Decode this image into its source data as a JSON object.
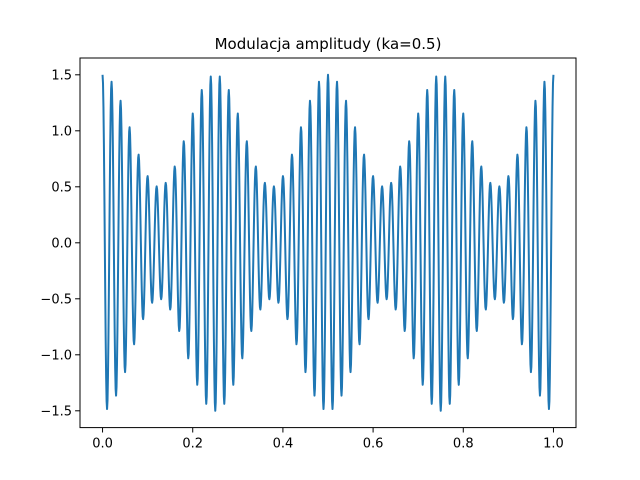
{
  "chart_data": {
    "type": "line",
    "title": "Modulacja amplitudy (ka=0.5)",
    "xlabel": "",
    "ylabel": "",
    "xlim": [
      -0.05,
      1.05
    ],
    "ylim": [
      -1.65,
      1.65
    ],
    "x_ticks": [
      0.0,
      0.2,
      0.4,
      0.6,
      0.8,
      1.0
    ],
    "x_tick_labels": [
      "0.0",
      "0.2",
      "0.4",
      "0.6",
      "0.8",
      "1.0"
    ],
    "y_ticks": [
      -1.5,
      -1.0,
      -0.5,
      0.0,
      0.5,
      1.0,
      1.5
    ],
    "y_tick_labels": [
      "−1.5",
      "−1.0",
      "−0.5",
      "0.0",
      "0.5",
      "1.0",
      "1.5"
    ],
    "grid": false,
    "series": [
      {
        "color": "#1f77b4",
        "signal": {
          "formula": "(1 + ka*cos(2*pi*fm*t)) * cos(2*pi*fc*t)",
          "ka": 0.5,
          "fm": 4,
          "fc": 50,
          "t_start": 0.0,
          "t_end": 1.0,
          "samples": 1000
        }
      }
    ]
  }
}
